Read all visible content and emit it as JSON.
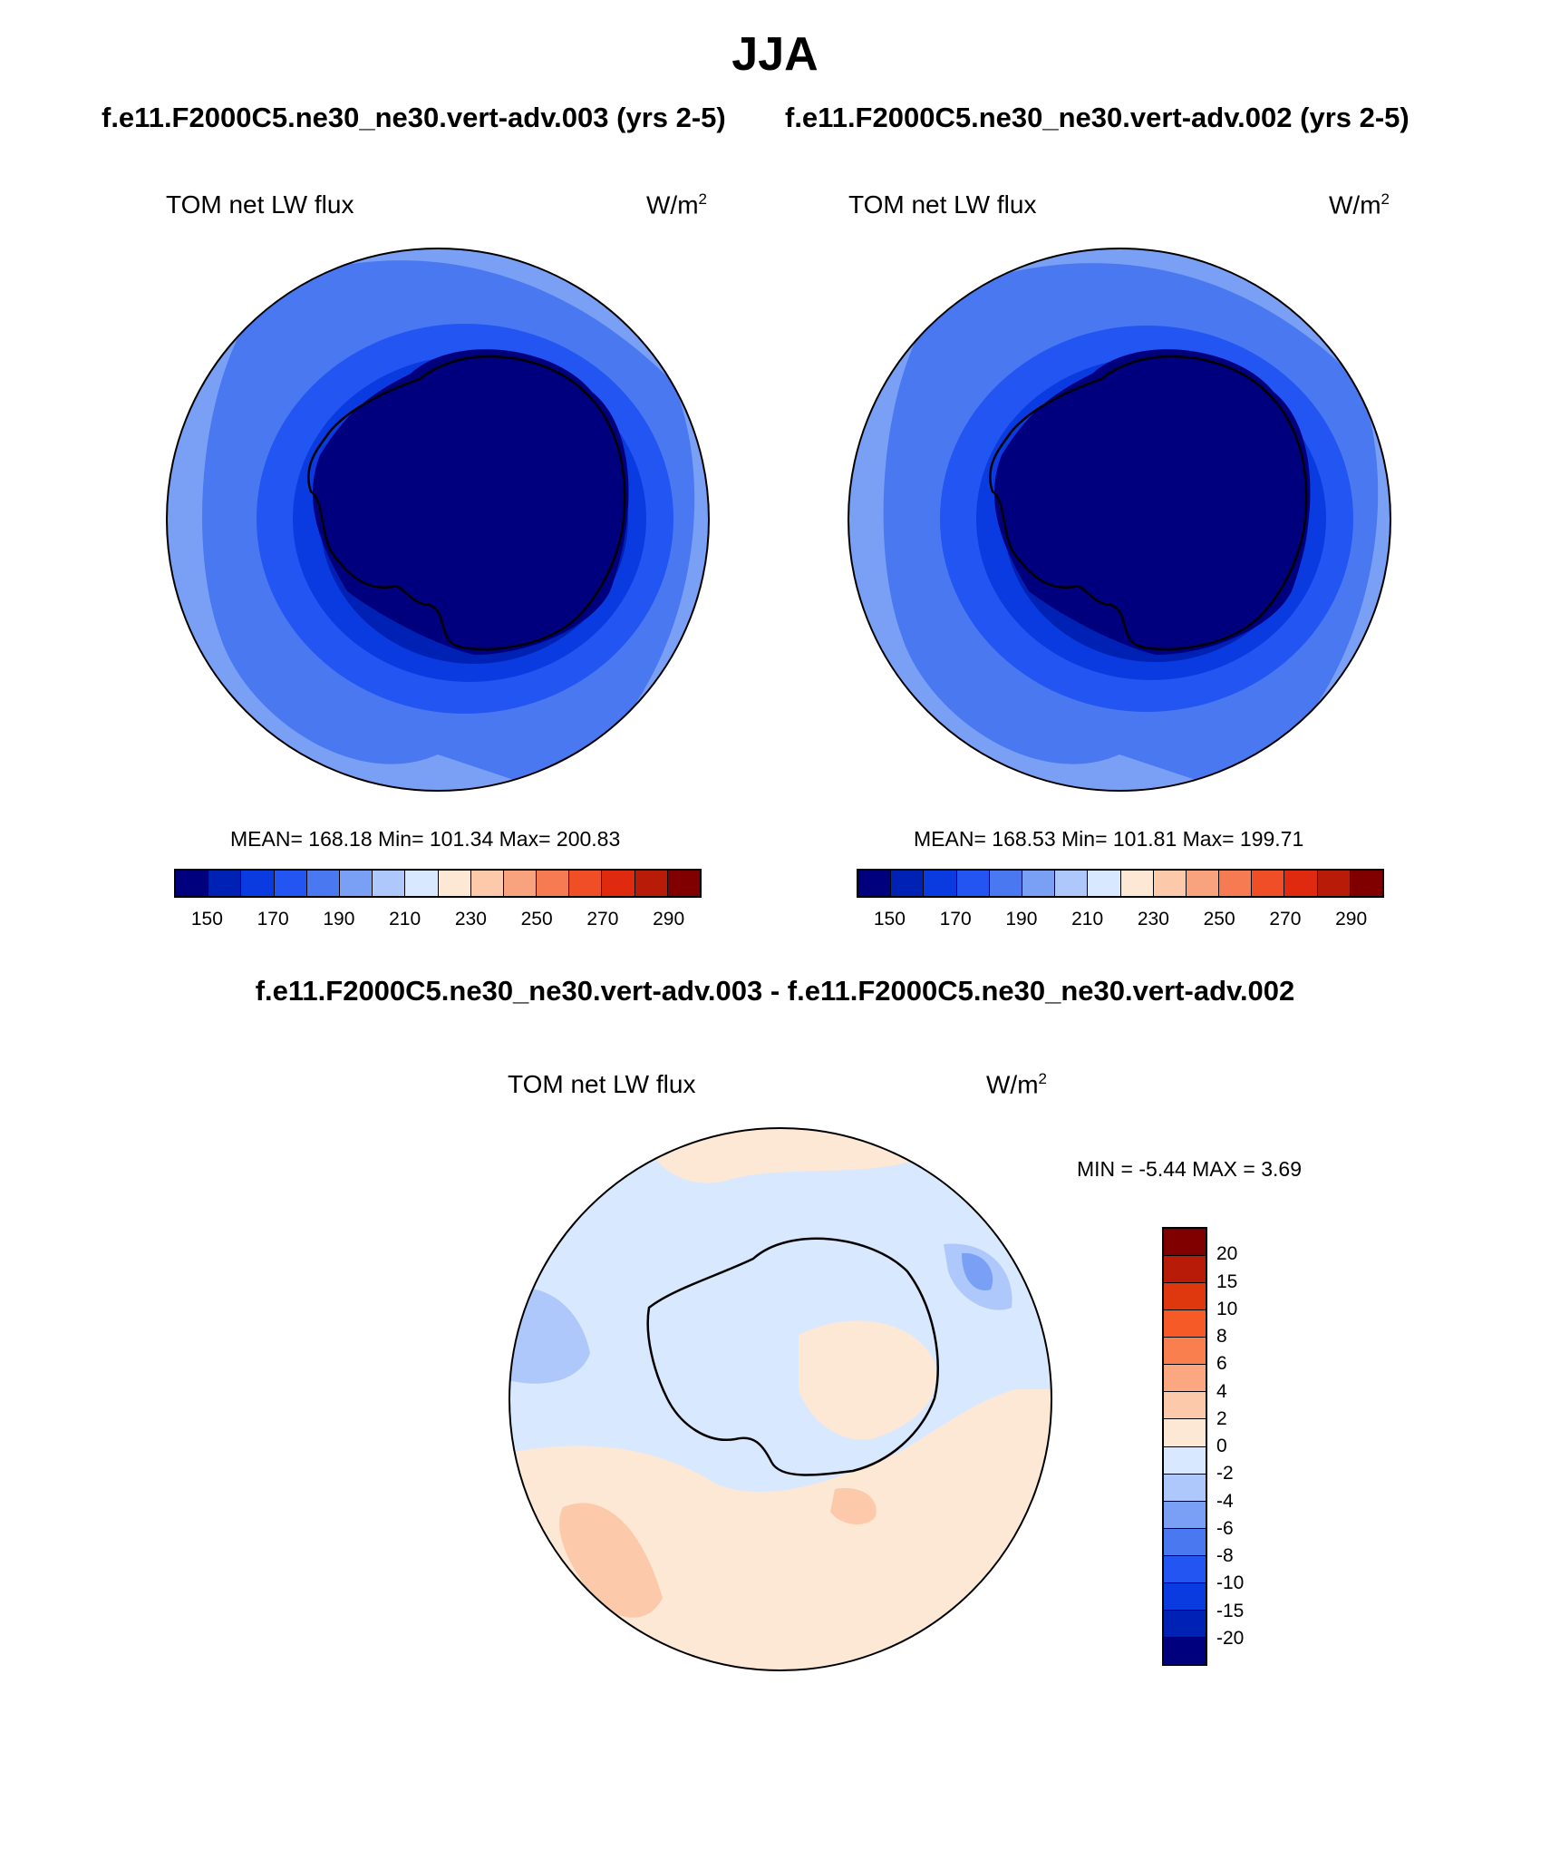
{
  "title": "JJA",
  "subtitle_left": "f.e11.F2000C5.ne30_ne30.vert-adv.003 (yrs 2-5)",
  "subtitle_right": "f.e11.F2000C5.ne30_ne30.vert-adv.002 (yrs 2-5)",
  "diff_title": "f.e11.F2000C5.ne30_ne30.vert-adv.003 - f.e11.F2000C5.ne30_ne30.vert-adv.002",
  "panels": {
    "left": {
      "label": "TOM net LW flux",
      "units": "W/m",
      "units_sup": "2",
      "stats": "MEAN= 168.18  Min= 101.34  Max= 200.83"
    },
    "right": {
      "label": "TOM net LW flux",
      "units": "W/m",
      "units_sup": "2",
      "stats": "MEAN= 168.53  Min= 101.81  Max= 199.71"
    },
    "diff": {
      "label": "TOM net LW flux",
      "units": "W/m",
      "units_sup": "2",
      "stats": "MIN =  -5.44 MAX =   3.69"
    }
  },
  "chart_data": [
    {
      "type": "heatmap",
      "projection": "south polar stereographic",
      "field": "TOM net LW flux",
      "units": "W/m2",
      "mean": 168.18,
      "min": 101.34,
      "max": 200.83,
      "colorbar_levels": [
        140,
        150,
        160,
        170,
        180,
        190,
        200,
        210,
        220,
        230,
        240,
        250,
        260,
        270,
        280,
        290,
        300
      ],
      "colorbar_tick_labels": [
        "150",
        "170",
        "190",
        "210",
        "230",
        "250",
        "270",
        "290"
      ],
      "colors": [
        "#00007f",
        "#0022b4",
        "#0a3be0",
        "#2255f2",
        "#4a78f0",
        "#7aa0f5",
        "#aec8fb",
        "#d8e8fe",
        "#fde8d6",
        "#fccaaa",
        "#f9a27e",
        "#f67a52",
        "#f04e26",
        "#e02a10",
        "#b81c08",
        "#800000"
      ]
    },
    {
      "type": "heatmap",
      "projection": "south polar stereographic",
      "field": "TOM net LW flux",
      "units": "W/m2",
      "mean": 168.53,
      "min": 101.81,
      "max": 199.71,
      "colorbar_levels": [
        140,
        150,
        160,
        170,
        180,
        190,
        200,
        210,
        220,
        230,
        240,
        250,
        260,
        270,
        280,
        290,
        300
      ],
      "colorbar_tick_labels": [
        "150",
        "170",
        "190",
        "210",
        "230",
        "250",
        "270",
        "290"
      ],
      "colors": [
        "#00007f",
        "#0022b4",
        "#0a3be0",
        "#2255f2",
        "#4a78f0",
        "#7aa0f5",
        "#aec8fb",
        "#d8e8fe",
        "#fde8d6",
        "#fccaaa",
        "#f9a27e",
        "#f67a52",
        "#f04e26",
        "#e02a10",
        "#b81c08",
        "#800000"
      ]
    },
    {
      "type": "heatmap",
      "projection": "south polar stereographic",
      "field": "TOM net LW flux (difference)",
      "units": "W/m2",
      "min": -5.44,
      "max": 3.69,
      "colorbar_tick_labels": [
        "20",
        "15",
        "10",
        "8",
        "6",
        "4",
        "2",
        "0",
        "-2",
        "-4",
        "-6",
        "-8",
        "-10",
        "-15",
        "-20"
      ],
      "colors_top_to_bottom": [
        "#800000",
        "#b81c08",
        "#e0380e",
        "#f65a26",
        "#f9804e",
        "#fba882",
        "#fccaaa",
        "#fde8d6",
        "#d8e8fe",
        "#aec8fb",
        "#7aa0f5",
        "#4a78f0",
        "#2255f2",
        "#0a3be0",
        "#0022b4",
        "#00007f"
      ]
    }
  ],
  "colors": {
    "antarctica_core": "#00007f",
    "diff_positive": "#fde8d6",
    "diff_negative": "#d8e8fe"
  }
}
